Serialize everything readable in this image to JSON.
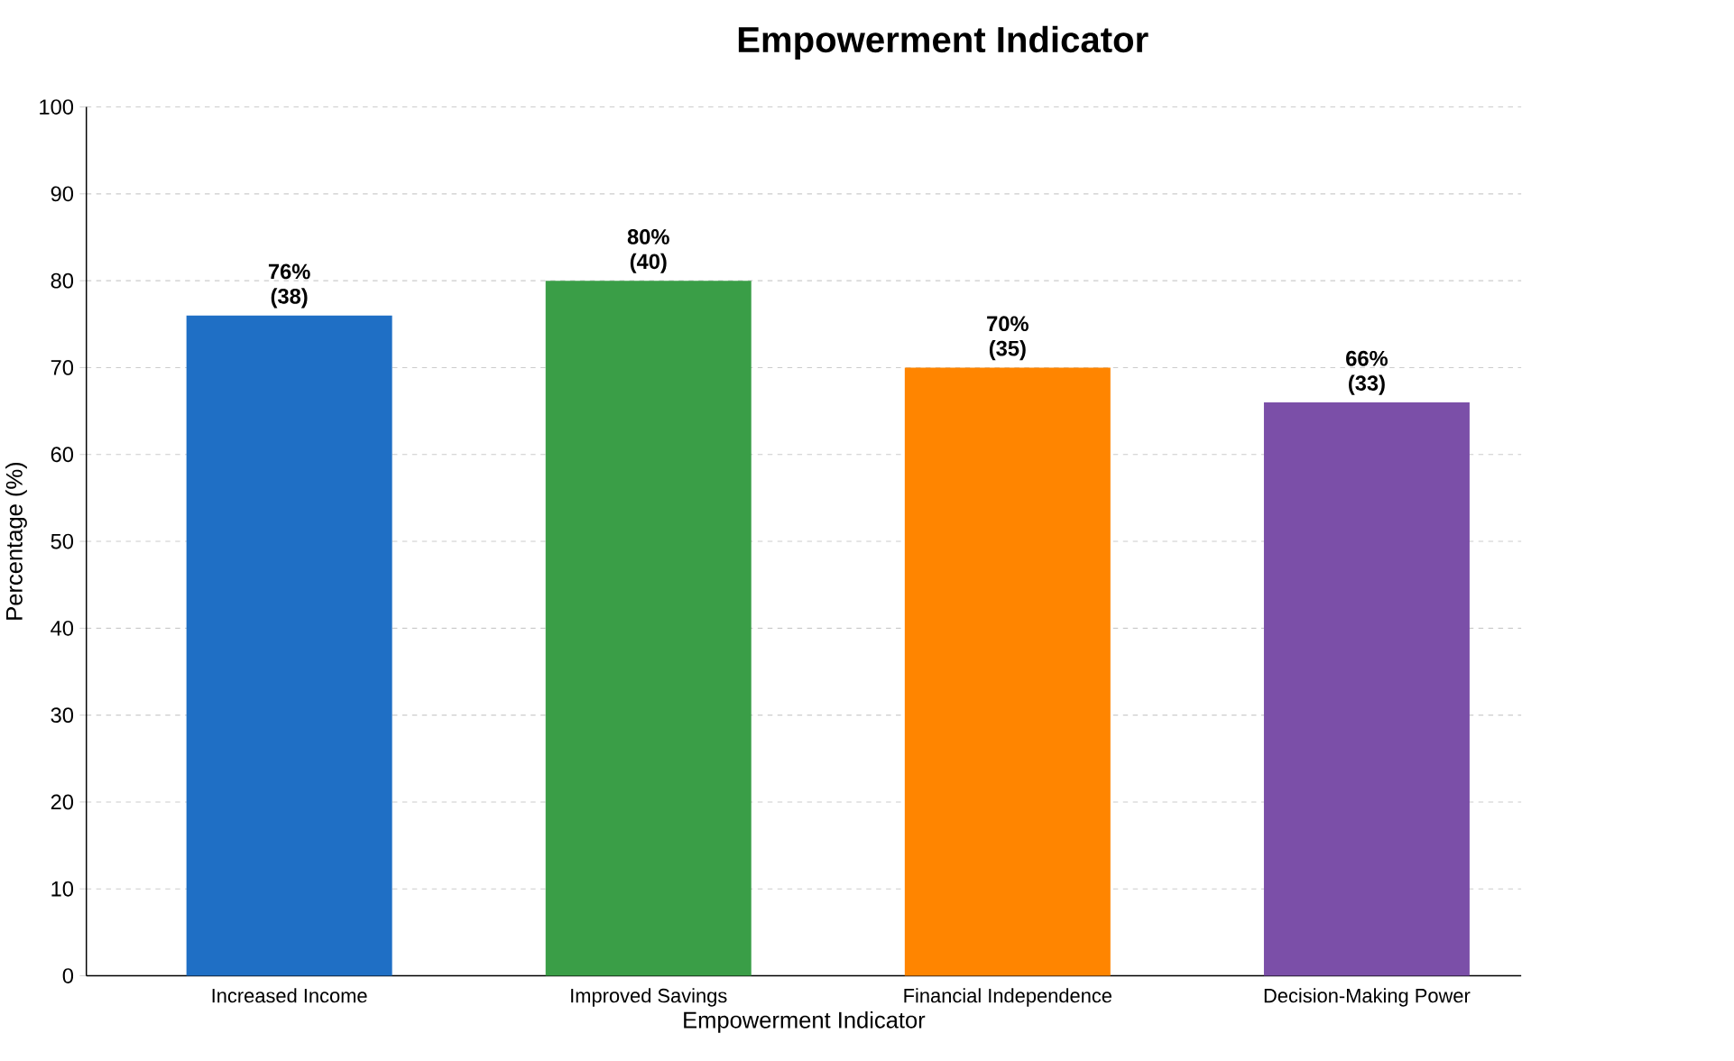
{
  "chart_data": {
    "type": "bar",
    "title": "Empowerment Indicator",
    "xlabel": "Empowerment Indicator",
    "ylabel": "Percentage (%)",
    "categories": [
      "Increased Income",
      "Improved Savings",
      "Financial Independence",
      "Decision-Making Power"
    ],
    "values": [
      76,
      80,
      70,
      66
    ],
    "colors": [
      "#1f6fc5",
      "#3a9e47",
      "#ff8500",
      "#7b4fa8"
    ],
    "value_labels": [
      "76% (38)",
      "80% (40)",
      "70% (35)",
      "66% (33)"
    ],
    "ylim": [
      0,
      100
    ],
    "yticks": [
      0,
      10,
      20,
      30,
      40,
      50,
      60,
      70,
      80,
      90,
      100
    ],
    "grid": "y"
  }
}
